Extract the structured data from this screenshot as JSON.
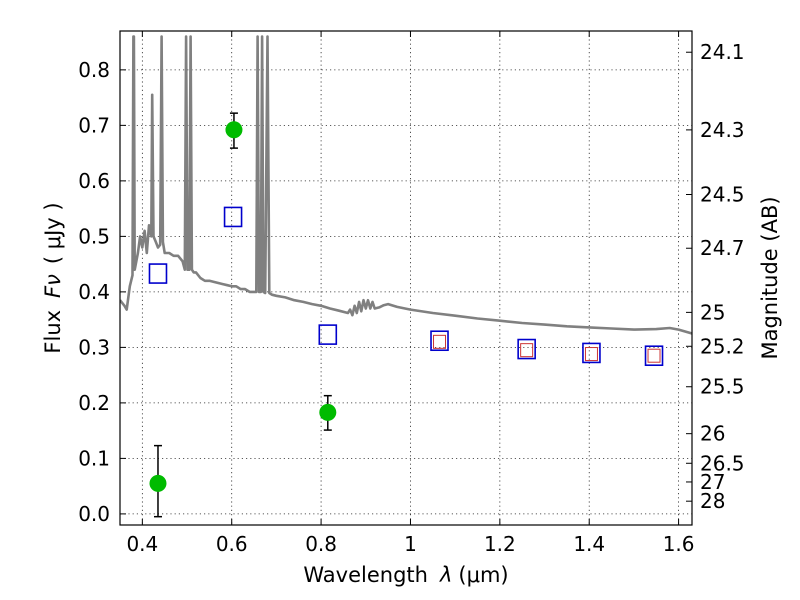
{
  "chart_data": {
    "type": "scatter",
    "title": "",
    "xlabel": "Wavelength",
    "xlabel_symbol": "λ",
    "xlabel_unit": "(μm)",
    "ylabel": "Flux",
    "ylabel_symbol": "Fν",
    "ylabel_unit": "( μJy )",
    "y2label": "Magnitude (AB)",
    "xlim": [
      0.35,
      1.63
    ],
    "ylim": [
      -0.02,
      0.87
    ],
    "grid": true,
    "x_ticks": [
      0.4,
      0.6,
      0.8,
      1.0,
      1.2,
      1.4,
      1.6
    ],
    "x_tick_labels": [
      "0.4",
      "0.6",
      "0.8",
      "1",
      "1.2",
      "1.4",
      "1.6"
    ],
    "y_ticks": [
      0.0,
      0.1,
      0.2,
      0.3,
      0.4,
      0.5,
      0.6,
      0.7,
      0.8
    ],
    "y_tick_labels": [
      "0.0",
      "0.1",
      "0.2",
      "0.3",
      "0.4",
      "0.5",
      "0.6",
      "0.7",
      "0.8"
    ],
    "mag_ticks": [
      24.1,
      24.3,
      24.5,
      24.7,
      25,
      25.2,
      25.5,
      26,
      26.5,
      27,
      28
    ],
    "mag_tick_labels": [
      "24.1",
      "24.3",
      "24.5",
      "24.7",
      "25",
      "25.2",
      "25.5",
      "26",
      "26.5",
      "27",
      "28"
    ],
    "colors": {
      "template": "#808080",
      "observed": "#00bb00",
      "model_box": "#0000cc",
      "model_inner": "#cc3333",
      "errorbar": "#000000"
    },
    "series": [
      {
        "kind": "template_line",
        "points": [
          [
            0.35,
            0.385
          ],
          [
            0.36,
            0.375
          ],
          [
            0.365,
            0.368
          ],
          [
            0.372,
            0.41
          ],
          [
            0.378,
            0.43
          ],
          [
            0.38,
            0.86
          ],
          [
            0.381,
            0.86
          ],
          [
            0.383,
            0.44
          ],
          [
            0.39,
            0.47
          ],
          [
            0.395,
            0.5
          ],
          [
            0.4,
            0.48
          ],
          [
            0.405,
            0.51
          ],
          [
            0.41,
            0.47
          ],
          [
            0.415,
            0.52
          ],
          [
            0.42,
            0.5
          ],
          [
            0.422,
            0.755
          ],
          [
            0.425,
            0.5
          ],
          [
            0.43,
            0.49
          ],
          [
            0.435,
            0.48
          ],
          [
            0.44,
            0.485
          ],
          [
            0.443,
            0.86
          ],
          [
            0.446,
            0.49
          ],
          [
            0.45,
            0.47
          ],
          [
            0.46,
            0.47
          ],
          [
            0.47,
            0.465
          ],
          [
            0.48,
            0.465
          ],
          [
            0.49,
            0.455
          ],
          [
            0.495,
            0.44
          ],
          [
            0.498,
            0.86
          ],
          [
            0.501,
            0.44
          ],
          [
            0.505,
            0.44
          ],
          [
            0.508,
            0.86
          ],
          [
            0.511,
            0.44
          ],
          [
            0.515,
            0.435
          ],
          [
            0.52,
            0.435
          ],
          [
            0.53,
            0.425
          ],
          [
            0.54,
            0.42
          ],
          [
            0.55,
            0.42
          ],
          [
            0.56,
            0.418
          ],
          [
            0.57,
            0.416
          ],
          [
            0.58,
            0.414
          ],
          [
            0.59,
            0.412
          ],
          [
            0.6,
            0.41
          ],
          [
            0.61,
            0.41
          ],
          [
            0.62,
            0.405
          ],
          [
            0.63,
            0.405
          ],
          [
            0.64,
            0.4
          ],
          [
            0.65,
            0.4
          ],
          [
            0.655,
            0.4
          ],
          [
            0.658,
            0.86
          ],
          [
            0.661,
            0.4
          ],
          [
            0.665,
            0.4
          ],
          [
            0.668,
            0.86
          ],
          [
            0.671,
            0.4
          ],
          [
            0.675,
            0.398
          ],
          [
            0.68,
            0.86
          ],
          [
            0.684,
            0.398
          ],
          [
            0.69,
            0.395
          ],
          [
            0.7,
            0.393
          ],
          [
            0.72,
            0.39
          ],
          [
            0.74,
            0.385
          ],
          [
            0.76,
            0.382
          ],
          [
            0.78,
            0.378
          ],
          [
            0.8,
            0.375
          ],
          [
            0.82,
            0.37
          ],
          [
            0.84,
            0.366
          ],
          [
            0.86,
            0.362
          ],
          [
            0.865,
            0.368
          ],
          [
            0.87,
            0.358
          ],
          [
            0.875,
            0.375
          ],
          [
            0.88,
            0.362
          ],
          [
            0.885,
            0.382
          ],
          [
            0.89,
            0.365
          ],
          [
            0.895,
            0.385
          ],
          [
            0.9,
            0.37
          ],
          [
            0.905,
            0.385
          ],
          [
            0.91,
            0.37
          ],
          [
            0.915,
            0.382
          ],
          [
            0.92,
            0.37
          ],
          [
            0.93,
            0.372
          ],
          [
            0.94,
            0.376
          ],
          [
            0.95,
            0.378
          ],
          [
            0.97,
            0.373
          ],
          [
            1.0,
            0.368
          ],
          [
            1.05,
            0.362
          ],
          [
            1.1,
            0.357
          ],
          [
            1.15,
            0.352
          ],
          [
            1.2,
            0.348
          ],
          [
            1.25,
            0.344
          ],
          [
            1.3,
            0.341
          ],
          [
            1.35,
            0.338
          ],
          [
            1.4,
            0.336
          ],
          [
            1.45,
            0.334
          ],
          [
            1.5,
            0.332
          ],
          [
            1.55,
            0.333
          ],
          [
            1.58,
            0.335
          ],
          [
            1.6,
            0.332
          ],
          [
            1.63,
            0.325
          ]
        ]
      },
      {
        "kind": "observed_points",
        "points": [
          {
            "x": 0.435,
            "y": 0.055,
            "yerr_low": 0.06,
            "yerr_high": 0.068
          },
          {
            "x": 0.605,
            "y": 0.692,
            "yerr_low": 0.033,
            "yerr_high": 0.03
          },
          {
            "x": 0.815,
            "y": 0.183,
            "yerr_low": 0.032,
            "yerr_high": 0.03
          }
        ]
      },
      {
        "kind": "model_boxes",
        "points": [
          {
            "x": 0.435,
            "y": 0.433
          },
          {
            "x": 0.603,
            "y": 0.535
          },
          {
            "x": 0.815,
            "y": 0.323
          },
          {
            "x": 1.065,
            "y": 0.312
          },
          {
            "x": 1.26,
            "y": 0.297
          },
          {
            "x": 1.405,
            "y": 0.29
          },
          {
            "x": 1.545,
            "y": 0.285
          }
        ]
      },
      {
        "kind": "model_inner_boxes",
        "points": [
          {
            "x": 1.065,
            "y": 0.31
          },
          {
            "x": 1.26,
            "y": 0.295
          },
          {
            "x": 1.405,
            "y": 0.288
          },
          {
            "x": 1.545,
            "y": 0.285
          }
        ]
      }
    ]
  }
}
